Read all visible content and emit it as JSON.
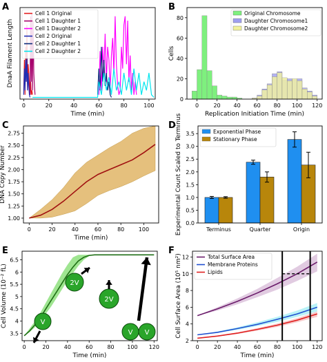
{
  "figure": {
    "panels": [
      {
        "letter": "A"
      },
      {
        "letter": "B"
      },
      {
        "letter": "C"
      },
      {
        "letter": "D"
      },
      {
        "letter": "E"
      },
      {
        "letter": "F"
      }
    ]
  },
  "chart_data": [
    {
      "panel": "A",
      "type": "line",
      "xlabel": "Time (min)",
      "ylabel": "DnaA Filament Length",
      "xlim": [
        -3,
        105
      ],
      "ylim": [
        0,
        1.05
      ],
      "xticks": [
        0,
        20,
        40,
        60,
        80,
        100
      ],
      "yticks": [],
      "legend": "top-left",
      "series": [
        {
          "name": "Cell 1 Original",
          "color": "#e41a1c",
          "x": [
            0,
            0.5,
            1,
            1.5,
            2,
            2.5,
            3,
            3.5,
            4,
            4.5,
            5,
            5.5,
            6,
            6.5,
            7
          ],
          "y": [
            0.1,
            0.45,
            0.05,
            0.6,
            0.2,
            0.85,
            0.1,
            0.4,
            0.3,
            0.15,
            0.05,
            0.2,
            0.05,
            0.1,
            0.05
          ]
        },
        {
          "name": "Cell 1 Daughter 1",
          "color": "#a6006b",
          "x": [
            5,
            5.5,
            6,
            6.5,
            7,
            7.5,
            8,
            8.5,
            9
          ],
          "y": [
            0.05,
            0.95,
            0.2,
            0.98,
            0.1,
            0.9,
            0.3,
            0.15,
            0.05
          ]
        },
        {
          "name": "Cell 1 Daughter 2",
          "color": "#ff00ff",
          "x": [
            60,
            61,
            62,
            63,
            64,
            65,
            66,
            67,
            68,
            69,
            70,
            71,
            72,
            73,
            74,
            75,
            76,
            77,
            78,
            79,
            80,
            81,
            82,
            83,
            84,
            85,
            86,
            87,
            88,
            89,
            90
          ],
          "y": [
            0.05,
            0.55,
            0.1,
            0.6,
            0.3,
            0.75,
            0.2,
            0.6,
            0.45,
            0.1,
            0.5,
            0.7,
            0.3,
            0.95,
            0.4,
            0.15,
            0.05,
            0.1,
            0.6,
            0.35,
            0.85,
            0.95,
            0.4,
            0.9,
            0.2,
            0.5,
            0.1,
            0.3,
            0.05,
            0.2,
            0.05
          ]
        },
        {
          "name": "Cell 2 Original",
          "color": "#1f2db4",
          "x": [
            0,
            0.5,
            1,
            1.5,
            2,
            2.5,
            3,
            3.5,
            4,
            4.5,
            5
          ],
          "y": [
            0.05,
            0.35,
            0.1,
            0.45,
            0.2,
            0.5,
            0.1,
            0.3,
            0.15,
            0.05,
            0.02
          ]
        },
        {
          "name": "Cell 2 Daughter 1",
          "color": "#0b2a7a",
          "x": [
            59,
            60,
            61,
            62,
            63,
            64,
            65,
            66,
            67,
            68,
            69,
            70
          ],
          "y": [
            0.05,
            0.35,
            0.1,
            0.6,
            0.2,
            0.45,
            0.15,
            0.3,
            0.1,
            0.2,
            0.05,
            0.02
          ]
        },
        {
          "name": "Cell 2 Daughter 2",
          "color": "#00e5ee",
          "x": [
            7,
            59,
            60,
            62,
            64,
            66,
            68,
            70,
            72,
            74,
            76,
            78,
            80,
            82,
            84,
            86,
            88,
            90,
            92,
            94,
            96,
            98,
            100,
            102,
            104
          ],
          "y": [
            0.02,
            0.02,
            0.2,
            0.05,
            0.3,
            0.1,
            0.25,
            0.05,
            0.35,
            0.1,
            0.2,
            0.05,
            0.3,
            0.1,
            0.25,
            0.05,
            0.35,
            0.1,
            0.3,
            0.05,
            0.2,
            0.1,
            0.3,
            0.05,
            0.02
          ]
        }
      ]
    },
    {
      "panel": "B",
      "type": "bar",
      "xlabel": "Replication Initiation Time (min)",
      "ylabel": "Cells",
      "xlim": [
        -10,
        125
      ],
      "ylim": [
        0,
        90
      ],
      "xticks": [
        0,
        20,
        40,
        60,
        80,
        100,
        120
      ],
      "yticks": [
        0,
        20,
        40,
        60,
        80
      ],
      "legend": "top-right",
      "bin_width": 5,
      "series": [
        {
          "name": "Original Chromosome",
          "color": "#7ef07e",
          "bins": [
            -5,
            0,
            5,
            10,
            15,
            20,
            25,
            30,
            35,
            40
          ],
          "values": [
            8,
            29,
            82,
            28,
            13,
            4,
            3,
            2,
            2,
            1
          ]
        },
        {
          "name": "Daughter Chromosome1",
          "color": "#9f9ff0",
          "bins": [
            55,
            60,
            65,
            70,
            75,
            80,
            85,
            90,
            95,
            100,
            105,
            110,
            115
          ],
          "values": [
            1,
            4,
            10,
            15,
            25,
            27,
            19,
            20,
            19,
            20,
            11,
            8,
            4
          ]
        },
        {
          "name": "Daughter Chromosome2",
          "color": "#f2f29c",
          "bins": [
            55,
            60,
            65,
            70,
            75,
            80,
            85,
            90,
            95,
            100,
            105,
            110,
            115
          ],
          "values": [
            1,
            3,
            9,
            14,
            22,
            26,
            21,
            18,
            20,
            18,
            10,
            7,
            3
          ]
        }
      ]
    },
    {
      "panel": "C",
      "type": "area",
      "xlabel": "Time (min)",
      "ylabel": "DNA Copy Number",
      "xlim": [
        -5,
        113
      ],
      "ylim": [
        0.9,
        2.9
      ],
      "xticks": [
        0,
        20,
        40,
        60,
        80,
        100
      ],
      "yticks": [
        1.0,
        1.25,
        1.5,
        1.75,
        2.0,
        2.25,
        2.5,
        2.75
      ],
      "series": [
        {
          "name": "",
          "color": "#a01010",
          "band_color": "#dfb05c",
          "x": [
            0,
            10,
            20,
            30,
            40,
            50,
            60,
            70,
            80,
            90,
            100,
            110
          ],
          "y": [
            1.0,
            1.06,
            1.18,
            1.35,
            1.55,
            1.75,
            1.9,
            2.0,
            2.1,
            2.2,
            2.35,
            2.52
          ],
          "lower": [
            1.0,
            1.0,
            1.02,
            1.08,
            1.15,
            1.3,
            1.47,
            1.57,
            1.65,
            1.75,
            1.87,
            1.98
          ],
          "upper": [
            1.0,
            1.18,
            1.38,
            1.63,
            1.93,
            2.15,
            2.3,
            2.45,
            2.58,
            2.75,
            2.85,
            2.9
          ]
        }
      ]
    },
    {
      "panel": "D",
      "type": "bar",
      "xlabel": "",
      "ylabel": "Experimental Count Scaled to Terminus",
      "categories": [
        "Terminus",
        "Quarter",
        "Origin"
      ],
      "ylim": [
        0,
        3.8
      ],
      "yticks": [
        0.0,
        0.5,
        1.0,
        1.5,
        2.0,
        2.5,
        3.0,
        3.5
      ],
      "legend": "top-left",
      "series": [
        {
          "name": "Exponential Phase",
          "color": "#1f8ff0",
          "values": [
            1.0,
            2.38,
            3.27
          ],
          "errors": [
            0.04,
            0.08,
            0.3
          ]
        },
        {
          "name": "Stationary Phase",
          "color": "#b8860b",
          "values": [
            1.0,
            1.8,
            2.27
          ],
          "errors": [
            0.03,
            0.2,
            0.5
          ]
        }
      ]
    },
    {
      "panel": "E",
      "type": "area",
      "xlabel": "Time (min)",
      "ylabel": "Cell Volume (10⁻² fL)",
      "xlim": [
        -2,
        123
      ],
      "ylim": [
        3.2,
        6.85
      ],
      "xticks": [
        0,
        20,
        40,
        60,
        80,
        100,
        120
      ],
      "yticks": [
        3.5,
        4.0,
        4.5,
        5.0,
        5.5,
        6.0,
        6.5
      ],
      "annotations": [
        "V",
        "2V",
        "2V",
        "V",
        "V"
      ],
      "series": [
        {
          "name": "",
          "color": "#1e6e14",
          "band_color": "#8ee07e",
          "x": [
            0,
            5,
            10,
            15,
            20,
            25,
            30,
            35,
            40,
            45,
            50,
            55,
            60,
            65,
            70,
            80,
            90,
            100,
            110,
            120
          ],
          "y": [
            3.4,
            3.6,
            3.85,
            4.15,
            4.5,
            4.85,
            5.2,
            5.55,
            5.9,
            6.2,
            6.45,
            6.6,
            6.68,
            6.7,
            6.7,
            6.7,
            6.7,
            6.7,
            6.7,
            6.7
          ],
          "lower": [
            3.4,
            3.55,
            3.75,
            4.0,
            4.3,
            4.6,
            4.95,
            5.3,
            5.65,
            5.95,
            6.25,
            6.5,
            6.65,
            6.7,
            6.7,
            6.7,
            6.7,
            6.7,
            6.7,
            6.7
          ],
          "upper": [
            3.4,
            3.7,
            4.0,
            4.35,
            4.75,
            5.15,
            5.55,
            5.95,
            6.3,
            6.6,
            6.7,
            6.7,
            6.7,
            6.7,
            6.7,
            6.7,
            6.7,
            6.7,
            6.7,
            6.7
          ]
        }
      ]
    },
    {
      "panel": "F",
      "type": "line",
      "xlabel": "Time (min)",
      "ylabel": "Cell Surface Area (10⁵ nm²)",
      "xlim": [
        -5,
        125
      ],
      "ylim": [
        2,
        12.7
      ],
      "xticks": [
        0,
        20,
        40,
        60,
        80,
        100,
        120
      ],
      "yticks": [
        2,
        4,
        6,
        8,
        10,
        12
      ],
      "legend": "top-left",
      "vlines": [
        85,
        113
      ],
      "dashed_segment": {
        "x": [
          85,
          113
        ],
        "y": 10.0
      },
      "series": [
        {
          "name": "Total Surface Area",
          "color": "#6a1b6a",
          "band_color": "#c9a0c9",
          "x": [
            0,
            20,
            40,
            60,
            80,
            100,
            120
          ],
          "y": [
            5.0,
            5.8,
            6.7,
            7.7,
            8.8,
            10.0,
            11.4
          ],
          "lower": [
            5.0,
            5.6,
            6.35,
            7.2,
            8.1,
            9.15,
            10.3
          ],
          "upper": [
            5.0,
            6.0,
            7.05,
            8.2,
            9.5,
            10.85,
            12.4
          ]
        },
        {
          "name": "Membrane Proteins",
          "color": "#1f4fd0",
          "band_color": "#7ee8f0",
          "x": [
            0,
            20,
            40,
            60,
            80,
            100,
            120
          ],
          "y": [
            2.7,
            3.0,
            3.45,
            3.95,
            4.55,
            5.2,
            6.0
          ],
          "lower": [
            2.7,
            2.95,
            3.3,
            3.75,
            4.25,
            4.85,
            5.5
          ],
          "upper": [
            2.7,
            3.1,
            3.6,
            4.2,
            4.85,
            5.6,
            6.5
          ]
        },
        {
          "name": "Lipids",
          "color": "#e02020",
          "band_color": "#f0a0a0",
          "x": [
            0,
            20,
            40,
            60,
            80,
            100,
            120
          ],
          "y": [
            2.3,
            2.55,
            2.9,
            3.35,
            3.85,
            4.45,
            5.2
          ],
          "lower": [
            2.3,
            2.5,
            2.8,
            3.2,
            3.65,
            4.2,
            4.85
          ],
          "upper": [
            2.3,
            2.6,
            3.0,
            3.5,
            4.05,
            4.7,
            5.5
          ]
        }
      ]
    }
  ]
}
